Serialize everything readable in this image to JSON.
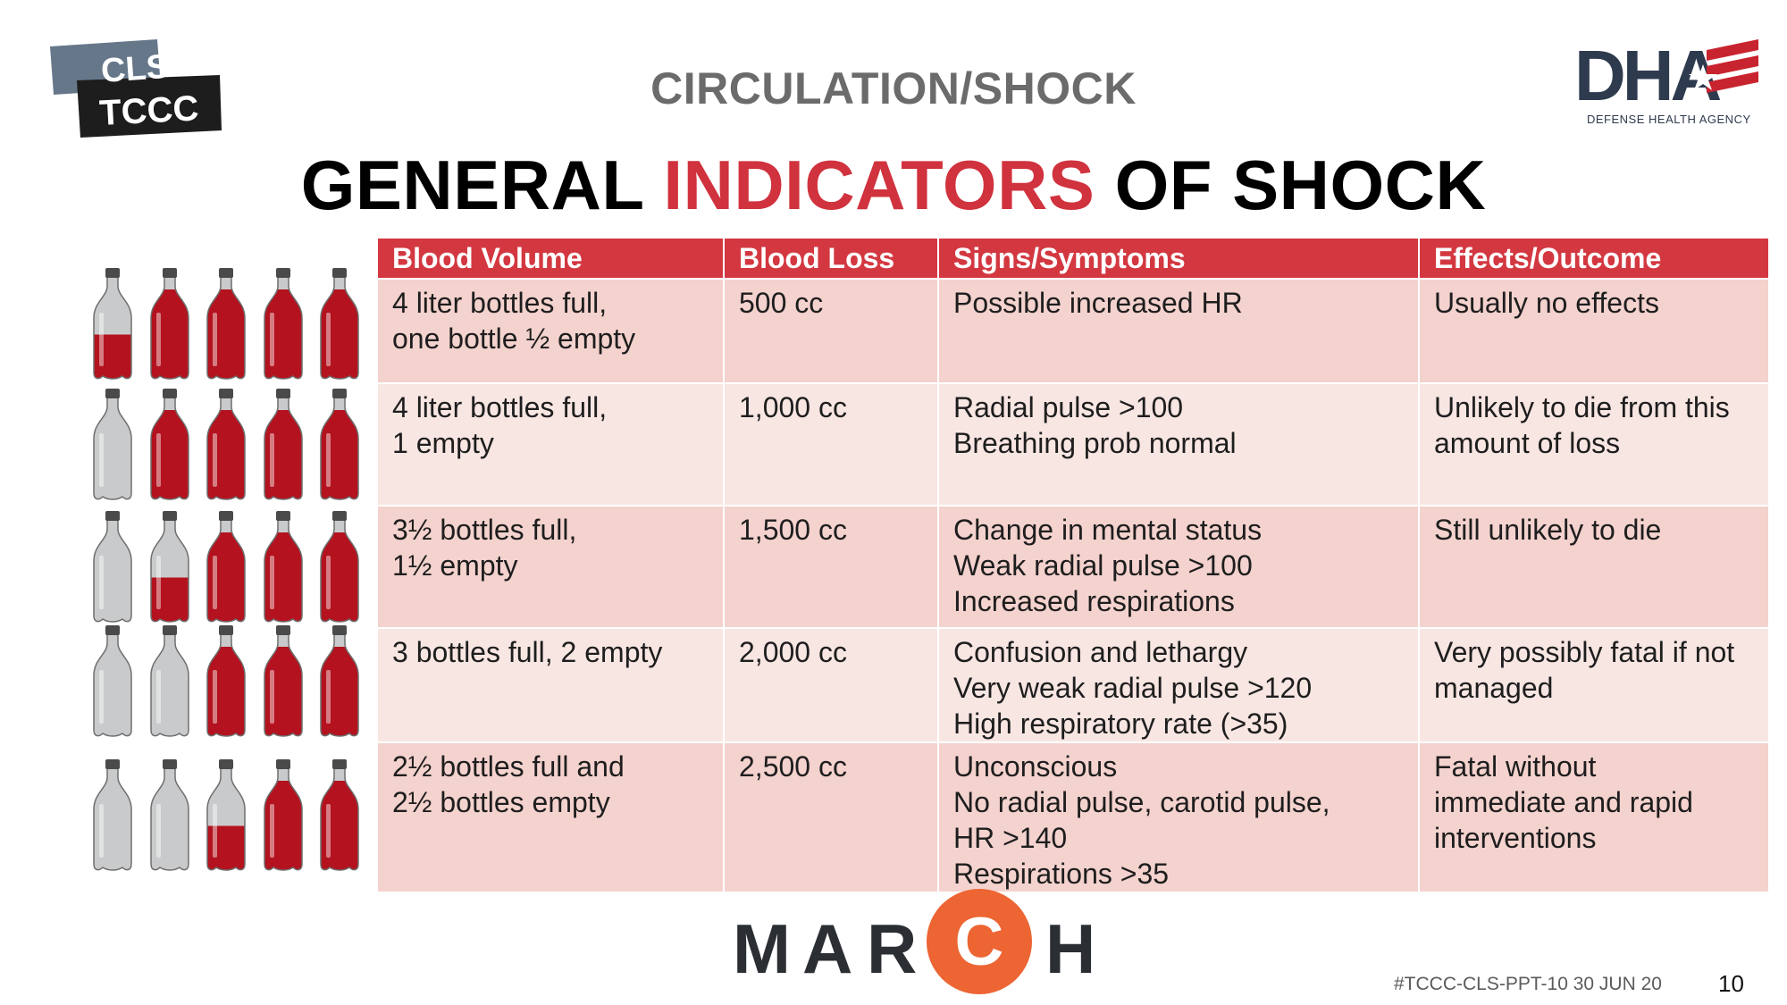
{
  "header": {
    "cls_logo_line1": "CLS",
    "cls_logo_line2": "TCCC",
    "dha_logo_text": "DHA",
    "dha_subtitle": "DEFENSE HEALTH AGENCY",
    "section_title": "CIRCULATION/SHOCK",
    "title_part1": "GENERAL ",
    "title_accent": "INDICATORS",
    "title_part2": " OF SHOCK"
  },
  "colors": {
    "accent_red": "#d0323e",
    "header_red": "#d33841",
    "row_pink": "#f4d2ce",
    "row_light": "#f8e6e3",
    "march_orange": "#ec6533",
    "dha_navy": "#2e3a4e"
  },
  "table": {
    "columns": [
      "Blood Volume",
      "Blood Loss",
      "Signs/Symptoms",
      "Effects/Outcome"
    ],
    "rows": [
      {
        "volume": [
          "4 liter bottles full,",
          "one bottle ½ empty"
        ],
        "loss": "500 cc",
        "signs": [
          "Possible increased HR"
        ],
        "effects": [
          "Usually no effects"
        ]
      },
      {
        "volume": [
          "4 liter bottles full,",
          "1 empty"
        ],
        "loss": "1,000 cc",
        "signs": [
          "Radial pulse >100",
          "Breathing prob normal"
        ],
        "effects": [
          "Unlikely to die from this",
          "amount of loss"
        ]
      },
      {
        "volume": [
          "3½ bottles full,",
          "1½ empty"
        ],
        "loss": "1,500 cc",
        "signs": [
          "Change in mental status",
          "Weak radial pulse >100",
          "Increased respirations"
        ],
        "effects": [
          "Still unlikely to die"
        ]
      },
      {
        "volume": [
          "3 bottles full, 2 empty"
        ],
        "loss": "2,000 cc",
        "signs": [
          "Confusion and lethargy",
          "Very weak radial pulse >120",
          "High respiratory rate (>35)"
        ],
        "effects": [
          "Very possibly fatal if not",
          "managed"
        ]
      },
      {
        "volume": [
          "2½ bottles full and",
          "2½ bottles empty"
        ],
        "loss": "2,500 cc",
        "signs": [
          "Unconscious",
          "No radial pulse, carotid pulse,",
          "HR >140",
          "Respirations >35"
        ],
        "effects": [
          "Fatal without",
          "immediate and rapid",
          "interventions"
        ]
      }
    ]
  },
  "bottle_rows": [
    [
      0.5,
      1,
      1,
      1,
      1
    ],
    [
      0,
      1,
      1,
      1,
      1
    ],
    [
      0,
      0.5,
      1,
      1,
      1
    ],
    [
      0,
      0,
      1,
      1,
      1
    ],
    [
      0,
      0,
      0.5,
      1,
      1
    ]
  ],
  "footer": {
    "march_letters": [
      "M",
      "A",
      "R",
      "C",
      "H"
    ],
    "doc_id": "#TCCC-CLS-PPT-10 30 JUN 20",
    "page_number": "10"
  }
}
